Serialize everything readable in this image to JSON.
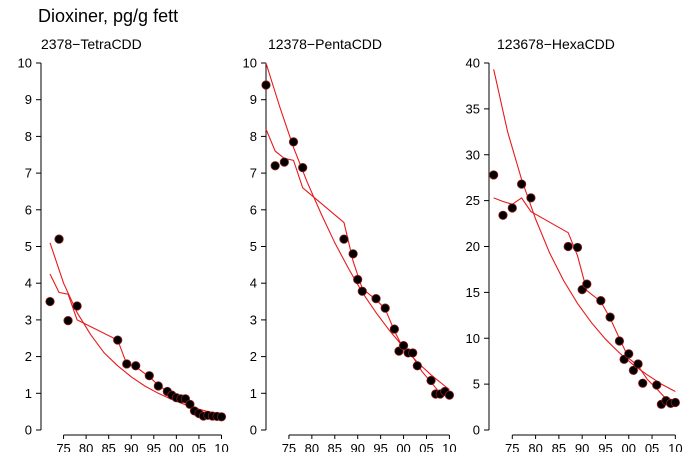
{
  "title": "Dioxiner, pg/g fett",
  "colors": {
    "point_fill": "#000000",
    "point_outline": "#8b1a1a",
    "fit_line": "#e8191b",
    "axis": "#000000"
  },
  "chart_data": [
    {
      "type": "scatter",
      "title": "2378−TetraCDD",
      "xlabel": "",
      "ylabel": "",
      "xlim": [
        1970,
        2011
      ],
      "ylim": [
        0,
        10
      ],
      "x_ticks": [
        1975,
        1980,
        1985,
        1990,
        1995,
        2000,
        2005,
        2010
      ],
      "x_tick_labels": [
        "75",
        "80",
        "85",
        "90",
        "95",
        "00",
        "05",
        "10"
      ],
      "y_ticks": [
        0,
        1,
        2,
        3,
        4,
        5,
        6,
        7,
        8,
        9,
        10
      ],
      "y_tick_labels": [
        "0",
        "1",
        "2",
        "3",
        "4",
        "5",
        "6",
        "7",
        "8",
        "9",
        "10"
      ],
      "points": {
        "x": [
          1972,
          1974,
          1976,
          1978,
          1987,
          1989,
          1991,
          1994,
          1996,
          1998,
          1999,
          2000,
          2001,
          2002,
          2003,
          2004,
          2005,
          2006,
          2007,
          2008,
          2009,
          2010
        ],
        "y": [
          3.5,
          5.2,
          2.98,
          3.38,
          2.45,
          1.8,
          1.75,
          1.48,
          1.2,
          1.05,
          0.95,
          0.88,
          0.85,
          0.85,
          0.7,
          0.52,
          0.45,
          0.38,
          0.4,
          0.38,
          0.37,
          0.36
        ]
      },
      "fits": [
        {
          "x": [
            1972,
            1975,
            1978,
            1981,
            1984,
            1987,
            1990,
            1993,
            1996,
            1999,
            2002,
            2005,
            2008,
            2010
          ],
          "y": [
            5.1,
            4.0,
            3.2,
            2.6,
            2.1,
            1.75,
            1.45,
            1.2,
            1.0,
            0.83,
            0.69,
            0.57,
            0.47,
            0.41
          ]
        },
        {
          "x": [
            1972,
            1974,
            1976,
            1978,
            1987,
            1989,
            1991,
            1994,
            1996,
            1998,
            2000,
            2002,
            2004,
            2006,
            2008,
            2010
          ],
          "y": [
            4.25,
            3.75,
            3.7,
            3.0,
            2.45,
            1.8,
            1.72,
            1.45,
            1.22,
            1.05,
            0.92,
            0.82,
            0.5,
            0.42,
            0.4,
            0.37
          ]
        }
      ]
    },
    {
      "type": "scatter",
      "title": "12378−PentaCDD",
      "xlabel": "",
      "ylabel": "",
      "xlim": [
        1970,
        2011
      ],
      "ylim": [
        0,
        10
      ],
      "x_ticks": [
        1975,
        1980,
        1985,
        1990,
        1995,
        2000,
        2005,
        2010
      ],
      "x_tick_labels": [
        "75",
        "80",
        "85",
        "90",
        "95",
        "00",
        "05",
        "10"
      ],
      "y_ticks": [
        0,
        1,
        2,
        3,
        4,
        5,
        6,
        7,
        8,
        9,
        10
      ],
      "y_tick_labels": [
        "0",
        "1",
        "2",
        "3",
        "4",
        "5",
        "6",
        "7",
        "8",
        "9",
        "10"
      ],
      "points": {
        "x": [
          1970,
          1972,
          1974,
          1976,
          1978,
          1987,
          1989,
          1990,
          1991,
          1994,
          1996,
          1998,
          1999,
          2000,
          2001,
          2002,
          2003,
          2006,
          2007,
          2008,
          2009,
          2010
        ],
        "y": [
          9.4,
          7.2,
          7.3,
          7.85,
          7.15,
          5.2,
          4.8,
          4.1,
          3.78,
          3.58,
          3.32,
          2.75,
          2.15,
          2.3,
          2.1,
          2.1,
          1.75,
          1.35,
          0.98,
          0.98,
          1.05,
          0.95
        ]
      },
      "fits": [
        {
          "x": [
            1970,
            1973,
            1976,
            1979,
            1982,
            1985,
            1988,
            1991,
            1994,
            1997,
            2000,
            2003,
            2006,
            2009,
            2010
          ],
          "y": [
            10.0,
            8.8,
            7.7,
            6.75,
            5.9,
            5.1,
            4.4,
            3.75,
            3.2,
            2.7,
            2.25,
            1.85,
            1.5,
            1.2,
            1.1
          ]
        },
        {
          "x": [
            1970,
            1972,
            1974,
            1976,
            1978,
            1987,
            1989,
            1991,
            1994,
            1996,
            1998,
            2000,
            2002,
            2004,
            2006,
            2008,
            2010
          ],
          "y": [
            8.2,
            7.6,
            7.4,
            7.35,
            6.6,
            5.65,
            4.6,
            3.85,
            3.55,
            3.3,
            2.7,
            2.2,
            2.0,
            1.6,
            1.3,
            1.0,
            0.95
          ]
        }
      ]
    },
    {
      "type": "scatter",
      "title": "123678−HexaCDD",
      "xlabel": "",
      "ylabel": "",
      "xlim": [
        1970,
        2011
      ],
      "ylim": [
        0,
        40
      ],
      "x_ticks": [
        1975,
        1980,
        1985,
        1990,
        1995,
        2000,
        2005,
        2010
      ],
      "x_tick_labels": [
        "75",
        "80",
        "85",
        "90",
        "95",
        "00",
        "05",
        "10"
      ],
      "y_ticks": [
        0,
        5,
        10,
        15,
        20,
        25,
        30,
        35,
        40
      ],
      "y_tick_labels": [
        "0",
        "5",
        "10",
        "15",
        "20",
        "25",
        "30",
        "35",
        "40"
      ],
      "points": {
        "x": [
          1971,
          1973,
          1975,
          1977,
          1979,
          1987,
          1989,
          1990,
          1991,
          1994,
          1996,
          1998,
          1999,
          2000,
          2001,
          2002,
          2003,
          2006,
          2007,
          2008,
          2009,
          2010
        ],
        "y": [
          27.8,
          23.4,
          24.2,
          26.8,
          25.3,
          20.0,
          19.9,
          15.3,
          15.9,
          14.1,
          12.3,
          9.7,
          7.7,
          8.3,
          6.5,
          7.2,
          5.1,
          4.9,
          2.8,
          3.2,
          2.9,
          3.0
        ]
      },
      "fits": [
        {
          "x": [
            1971,
            1974,
            1977,
            1980,
            1983,
            1986,
            1989,
            1992,
            1995,
            1998,
            2001,
            2004,
            2007,
            2010
          ],
          "y": [
            39.3,
            32.5,
            27.3,
            23.0,
            19.3,
            16.3,
            13.8,
            11.7,
            9.9,
            8.4,
            7.1,
            6.0,
            5.0,
            4.2
          ]
        },
        {
          "x": [
            1971,
            1973,
            1975,
            1977,
            1979,
            1987,
            1989,
            1991,
            1994,
            1996,
            1998,
            2000,
            2002,
            2004,
            2006,
            2008,
            2010
          ],
          "y": [
            25.3,
            24.9,
            24.6,
            25.3,
            23.8,
            21.5,
            19.0,
            15.2,
            14.0,
            12.2,
            10.0,
            7.8,
            7.0,
            5.5,
            4.5,
            3.4,
            3.0
          ]
        }
      ]
    }
  ]
}
